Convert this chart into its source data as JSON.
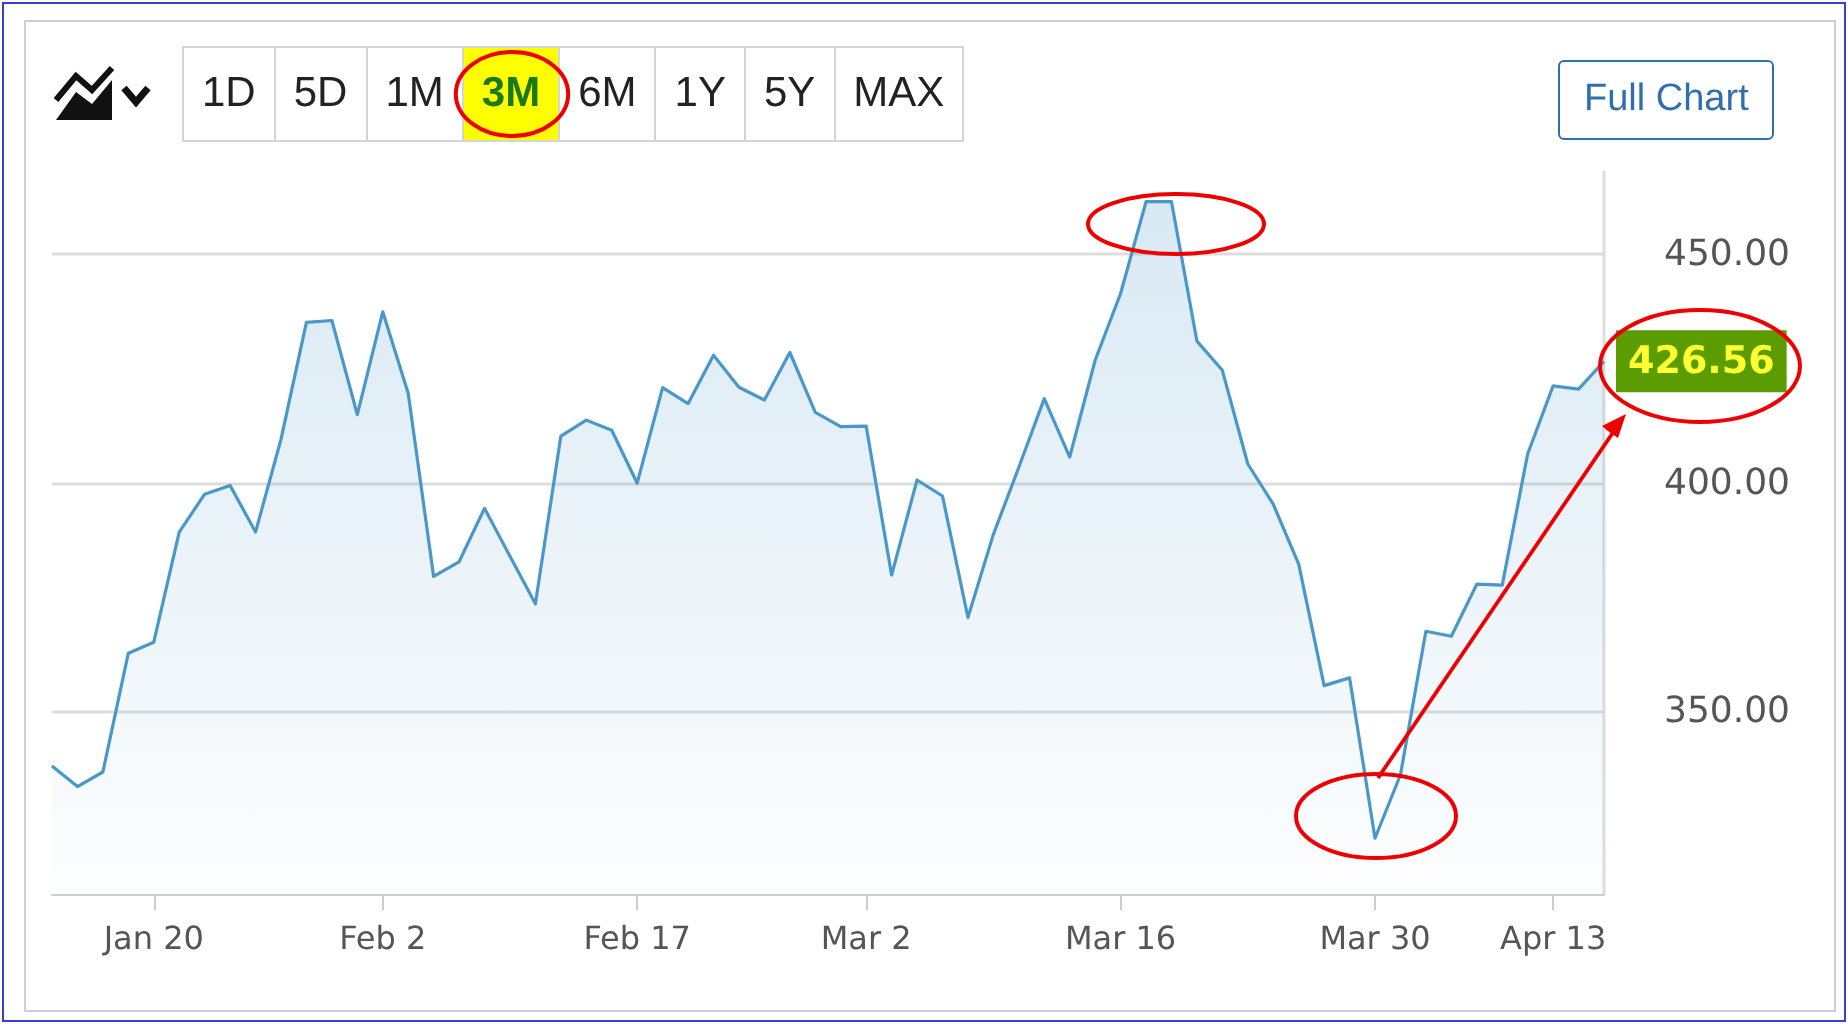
{
  "chart_data": {
    "type": "area",
    "categories": [
      null,
      null,
      null,
      null,
      "Jan 20",
      null,
      null,
      null,
      null,
      null,
      null,
      null,
      null,
      "Feb 2",
      null,
      null,
      null,
      null,
      null,
      null,
      null,
      null,
      null,
      "Feb 17",
      null,
      null,
      null,
      null,
      null,
      null,
      null,
      null,
      "Mar 2",
      null,
      null,
      null,
      null,
      null,
      null,
      null,
      null,
      null,
      "Mar 16",
      null,
      null,
      null,
      null,
      null,
      null,
      null,
      null,
      null,
      "Mar 30",
      null,
      null,
      null,
      null,
      null,
      null,
      "Apr 13",
      null,
      null
    ],
    "series": [
      {
        "color": "#4a97c9",
        "values": [
          338.0,
          333.5,
          336.7,
          362.7,
          365.1,
          389.2,
          397.5,
          399.4,
          389.2,
          409.5,
          435.1,
          435.5,
          414.9,
          437.4,
          419.6,
          379.5,
          382.7,
          394.4,
          383.9,
          373.5,
          410.2,
          413.7,
          411.5,
          399.9,
          420.8,
          417.3,
          427.9,
          420.9,
          418.1,
          428.5,
          415.4,
          412.3,
          412.4,
          379.8,
          400.6,
          397.1,
          370.5,
          388.7,
          403.4,
          418.4,
          405.6,
          426.8,
          441.4,
          461.5,
          461.5,
          431.0,
          424.6,
          404.1,
          395.3,
          382.2,
          355.6,
          357.3,
          322.2,
          336.1,
          367.5,
          366.4,
          377.8,
          377.6,
          406.3,
          421.2,
          420.5,
          426.56
        ],
        "value_labels": [
          null,
          null,
          null,
          null,
          null,
          null,
          null,
          null,
          null,
          null,
          null,
          null,
          null,
          null,
          null,
          null,
          null,
          null,
          null,
          null,
          null,
          null,
          null,
          null,
          null,
          null,
          null,
          null,
          null,
          null,
          null,
          null,
          null,
          null,
          null,
          null,
          null,
          null,
          null,
          null,
          null,
          null,
          null,
          null,
          null,
          null,
          null,
          null,
          null,
          null,
          null,
          null,
          null,
          null,
          null,
          null,
          null,
          null,
          null,
          null,
          null,
          "426.56"
        ]
      }
    ],
    "ylim": [
      310,
      468
    ],
    "yticks": [
      {
        "value": 350,
        "label": "350.00"
      },
      {
        "value": 400,
        "label": "400.00"
      },
      {
        "value": 450,
        "label": "450.00"
      }
    ],
    "grid": "y",
    "annotations": [
      "1D",
      "5D",
      "1M",
      "3M",
      "6M",
      "1Y",
      "5Y",
      "MAX",
      "Full Chart"
    ]
  }
}
